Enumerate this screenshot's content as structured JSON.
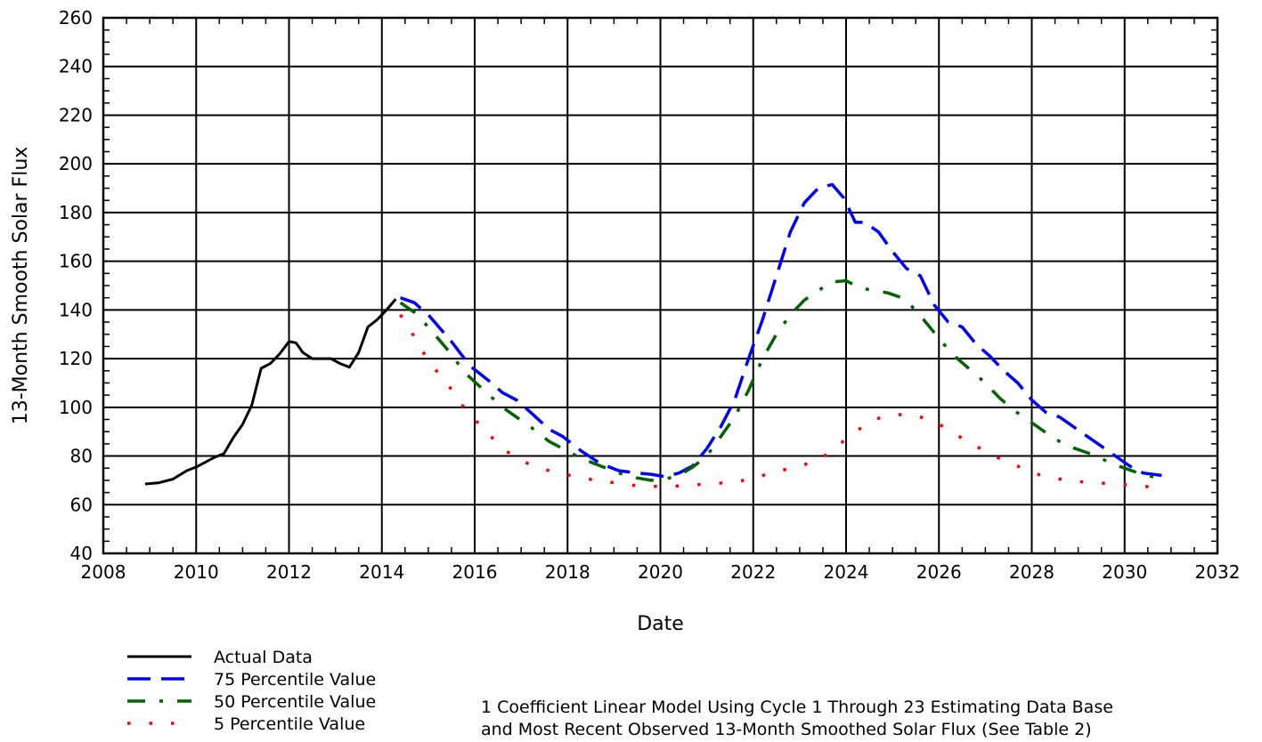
{
  "chart_data": {
    "type": "line",
    "title": "",
    "xlabel": "Date",
    "ylabel": "13-Month Smooth Solar Flux",
    "xlim": [
      2008,
      2032
    ],
    "ylim": [
      40,
      260
    ],
    "x_ticks": [
      2008,
      2010,
      2012,
      2014,
      2016,
      2018,
      2020,
      2022,
      2024,
      2026,
      2028,
      2030,
      2032
    ],
    "y_ticks": [
      40,
      60,
      80,
      100,
      120,
      140,
      160,
      180,
      200,
      220,
      240,
      260
    ],
    "grid": true,
    "legend_position": "bottom-left",
    "series": [
      {
        "name": "Actual Data",
        "style": "solid",
        "color": "#000000",
        "x": [
          2008.9,
          2009.2,
          2009.5,
          2009.8,
          2010.0,
          2010.2,
          2010.4,
          2010.6,
          2010.8,
          2011.0,
          2011.2,
          2011.4,
          2011.6,
          2011.8,
          2012.0,
          2012.15,
          2012.3,
          2012.5,
          2012.7,
          2012.9,
          2013.1,
          2013.3,
          2013.5,
          2013.7,
          2013.9,
          2014.1,
          2014.3
        ],
        "y": [
          68.5,
          69,
          70.5,
          74,
          75.5,
          77.5,
          79.5,
          81,
          87.5,
          93,
          101,
          116,
          118,
          122,
          127,
          126.5,
          122.5,
          120,
          120,
          120,
          118,
          116.5,
          122.5,
          133,
          136,
          140,
          144.5
        ]
      },
      {
        "name": "75 Percentile Value",
        "style": "dashed",
        "color": "#0000ff",
        "x": [
          2014.4,
          2014.7,
          2015.0,
          2015.5,
          2015.9,
          2016.3,
          2016.6,
          2016.9,
          2017.2,
          2017.6,
          2017.9,
          2018.3,
          2018.7,
          2019.1,
          2019.5,
          2019.8,
          2020.1,
          2020.4,
          2020.7,
          2021.0,
          2021.3,
          2021.6,
          2021.9,
          2022.2,
          2022.5,
          2022.8,
          2023.1,
          2023.4,
          2023.7,
          2023.95,
          2024.2,
          2024.4,
          2024.7,
          2025.0,
          2025.3,
          2025.6,
          2025.9,
          2026.2,
          2026.5,
          2026.8,
          2027.1,
          2027.4,
          2027.7,
          2028.0,
          2028.3,
          2028.6,
          2028.9,
          2029.2,
          2029.5,
          2029.8,
          2030.1,
          2030.4,
          2030.8
        ],
        "y": [
          145,
          143,
          138,
          127,
          117,
          111,
          106,
          103,
          98,
          91,
          88,
          82,
          77,
          74,
          73,
          72.5,
          71.5,
          73,
          76,
          83,
          92,
          103,
          120,
          136,
          154,
          172,
          184,
          190,
          191.5,
          186,
          176,
          176,
          172,
          164,
          157,
          154,
          142,
          135,
          133,
          126,
          121,
          115,
          110,
          103,
          98,
          96,
          92,
          88,
          84,
          80,
          76,
          73,
          72
        ]
      },
      {
        "name": "50 Percentile Value",
        "style": "dash-dot",
        "color": "#006400",
        "x": [
          2014.4,
          2014.7,
          2015.0,
          2015.4,
          2015.8,
          2016.2,
          2016.6,
          2016.9,
          2017.2,
          2017.6,
          2017.9,
          2018.3,
          2018.7,
          2019.1,
          2019.5,
          2019.8,
          2020.1,
          2020.4,
          2020.7,
          2021.0,
          2021.3,
          2021.6,
          2021.9,
          2022.2,
          2022.5,
          2022.8,
          2023.1,
          2023.4,
          2023.7,
          2024.0,
          2024.3,
          2024.6,
          2024.9,
          2025.2,
          2025.5,
          2025.8,
          2026.1,
          2026.4,
          2026.7,
          2027.0,
          2027.3,
          2027.6,
          2027.9,
          2028.2,
          2028.5,
          2028.8,
          2029.1,
          2029.4,
          2029.7,
          2030.0,
          2030.3,
          2030.7
        ],
        "y": [
          143,
          139,
          133,
          124,
          114,
          107,
          100,
          96,
          92,
          86,
          83,
          79,
          76,
          73,
          71,
          70,
          70.5,
          72,
          75.5,
          80,
          88,
          96,
          107,
          120,
          130,
          138,
          144,
          148,
          151.5,
          152,
          149,
          148,
          147,
          145,
          140,
          133,
          126,
          120,
          115,
          110,
          104,
          99,
          95,
          91,
          87,
          84,
          82,
          80,
          77,
          75,
          73,
          71
        ]
      },
      {
        "name": "5 Percentile Value",
        "style": "dotted",
        "color": "#ff0000",
        "x": [
          2014.4,
          2014.7,
          2015.0,
          2015.4,
          2015.8,
          2016.2,
          2016.6,
          2017.0,
          2017.4,
          2017.8,
          2018.2,
          2018.6,
          2019.0,
          2019.4,
          2019.8,
          2020.2,
          2020.6,
          2021.0,
          2021.4,
          2021.8,
          2022.2,
          2022.6,
          2023.0,
          2023.4,
          2023.8,
          2024.2,
          2024.6,
          2025.0,
          2025.4,
          2025.8,
          2026.2,
          2026.6,
          2027.0,
          2027.4,
          2027.8,
          2028.2,
          2028.6,
          2029.0,
          2029.4,
          2029.8,
          2030.2,
          2030.7
        ],
        "y": [
          138,
          129,
          119,
          110,
          99,
          91,
          83,
          78,
          75,
          73,
          71.5,
          70,
          69,
          68,
          67.5,
          67.5,
          68,
          68.5,
          69,
          70,
          72,
          74,
          76,
          78,
          84,
          90,
          95,
          97,
          97,
          95,
          91,
          86,
          82,
          78,
          75,
          72,
          70.5,
          69.5,
          69,
          68.5,
          68,
          67
        ]
      }
    ],
    "annotation": [
      "1 Coefficient Linear Model Using Cycle 1 Through 23 Estimating Data Base",
      "and Most Recent Observed 13-Month Smoothed Solar Flux (See Table 2)"
    ]
  }
}
